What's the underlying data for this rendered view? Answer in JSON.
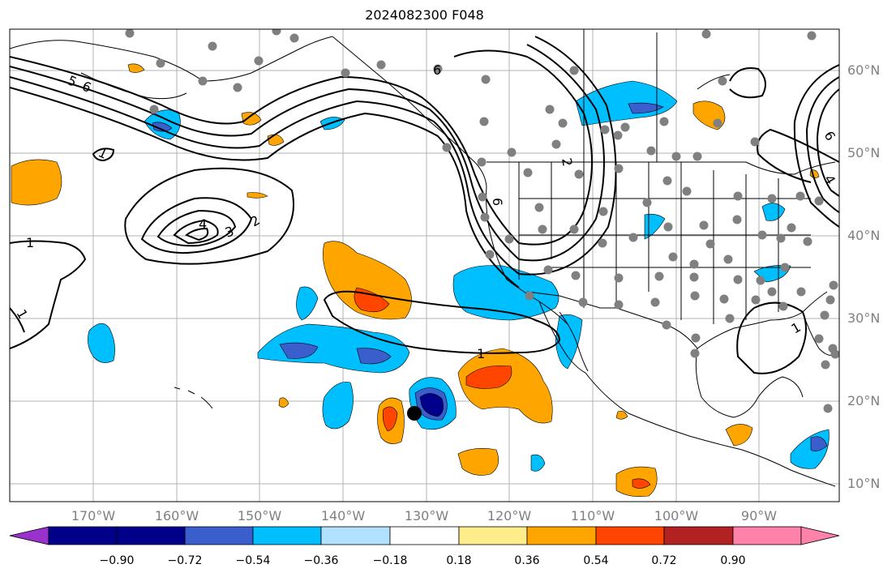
{
  "title": "2024082300 F048",
  "lat_labels": [
    "60°N",
    "50°N",
    "40°N",
    "30°N",
    "20°N",
    "10°N"
  ],
  "lon_labels": [
    "170°W",
    "160°W",
    "150°W",
    "140°W",
    "130°W",
    "120°W",
    "110°W",
    "100°W",
    "90°W"
  ],
  "colorbar": {
    "tick_labels": [
      "−0.90",
      "−0.72",
      "−0.54",
      "−0.36",
      "−0.18",
      "0.18",
      "0.36",
      "0.54",
      "0.72",
      "0.90"
    ],
    "colors": [
      "#9932cc",
      "#00008b",
      "#3a5fcd",
      "#00bfff",
      "#b0e2ff",
      "#ffffff",
      "#ffec8b",
      "#ffa500",
      "#ff4500",
      "#b22222",
      "#ff82ab"
    ]
  },
  "contour_labels": [
    "5",
    "6",
    "6",
    "6",
    "1",
    "4",
    "3",
    "2",
    "1",
    "1",
    "1",
    "1",
    "6",
    "4",
    "2"
  ],
  "colors": {
    "grid": "#b3b3b3",
    "contour": "#000000",
    "land_border": "#000000",
    "station_dot": "#808080",
    "marker": "#000000"
  }
}
